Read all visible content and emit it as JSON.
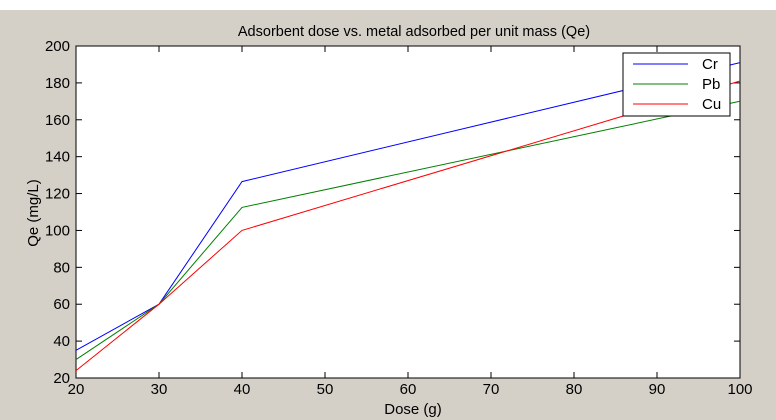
{
  "chart_data": {
    "type": "line",
    "title": "Adsorbent dose vs. metal adsorbed per unit mass (Qe)",
    "xlabel": "Dose (g)",
    "ylabel": "Qe (mg/L)",
    "xlim": [
      20,
      100
    ],
    "ylim": [
      20,
      200
    ],
    "xticks": [
      20,
      30,
      40,
      50,
      60,
      70,
      80,
      90,
      100
    ],
    "yticks": [
      20,
      40,
      60,
      80,
      100,
      120,
      140,
      160,
      180,
      200
    ],
    "grid": false,
    "legend_position": "top-right",
    "x": [
      20,
      30,
      40,
      100
    ],
    "series": [
      {
        "name": "Cr",
        "color": "#0000ff",
        "values": [
          35,
          60,
          126.5,
          191
        ]
      },
      {
        "name": "Pb",
        "color": "#008000",
        "values": [
          30,
          60,
          112.5,
          170
        ]
      },
      {
        "name": "Cu",
        "color": "#ff0000",
        "values": [
          24,
          60,
          100,
          181
        ]
      }
    ]
  }
}
